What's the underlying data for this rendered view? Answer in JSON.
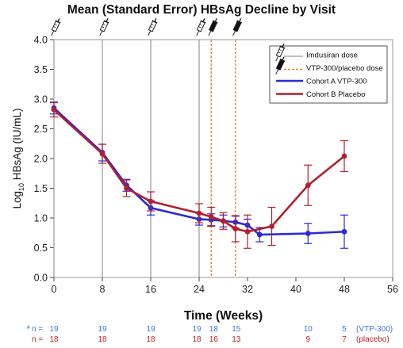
{
  "chart_data": {
    "type": "line",
    "title": "Mean (Standard Error) HBsAg Decline by Visit",
    "xlabel": "Time (Weeks)",
    "ylabel_main": "Log",
    "ylabel_sub": "10",
    "ylabel_rest": " HBsAg (IU/mL)",
    "xlim": [
      0,
      56
    ],
    "ylim": [
      0.0,
      4.0
    ],
    "x_ticks": [
      "0",
      "8",
      "16",
      "24",
      "32",
      "40",
      "48",
      "56"
    ],
    "y_ticks": [
      "0.0",
      "0.5",
      "1.0",
      "1.5",
      "2.0",
      "2.5",
      "3.0",
      "3.5",
      "4.0"
    ],
    "imdusiran_dose_weeks": [
      0,
      8,
      16,
      24
    ],
    "vtp_dose_weeks": [
      26,
      30
    ],
    "legend": {
      "position": "top-right",
      "items": [
        {
          "label": "Imdusiran dose",
          "kind": "imdusiran"
        },
        {
          "label": "VTP-300/placebo dose",
          "kind": "vtp"
        },
        {
          "label": "Cohort A VTP-300",
          "kind": "line",
          "color": "#2a2ad4"
        },
        {
          "label": "Cohort B Placebo",
          "kind": "line",
          "color": "#b0202e"
        }
      ]
    },
    "series": [
      {
        "name": "Cohort A VTP-300",
        "color": "#2a2ad4",
        "x": [
          0,
          8,
          12,
          16,
          24,
          26,
          28,
          30,
          32,
          34,
          42,
          48
        ],
        "y": [
          2.85,
          2.1,
          1.55,
          1.17,
          0.98,
          0.97,
          0.95,
          0.93,
          0.88,
          0.72,
          0.74,
          0.77
        ],
        "err": [
          0.1,
          0.14,
          0.1,
          0.12,
          0.1,
          0.1,
          0.1,
          0.1,
          0.1,
          0.12,
          0.17,
          0.28
        ]
      },
      {
        "name": "Cohort B Placebo",
        "color": "#b0202e",
        "x": [
          0,
          8,
          12,
          16,
          24,
          26,
          28,
          30,
          32,
          36,
          42,
          48
        ],
        "y": [
          2.82,
          2.08,
          1.5,
          1.28,
          1.08,
          1.02,
          0.95,
          0.82,
          0.77,
          0.86,
          1.55,
          2.04
        ],
        "err": [
          0.12,
          0.16,
          0.14,
          0.16,
          0.16,
          0.16,
          0.14,
          0.22,
          0.28,
          0.32,
          0.34,
          0.26
        ]
      }
    ],
    "n_rows": [
      {
        "prefix": "n =",
        "marker": "*",
        "color": "#3a7ad0",
        "weeks": [
          0,
          8,
          16,
          24,
          26,
          30,
          42,
          48
        ],
        "values": [
          "19",
          "19",
          "19",
          "19",
          "18",
          "15",
          "10",
          "5"
        ],
        "suffix": "(VTP-300)"
      },
      {
        "prefix": "n =",
        "marker": "",
        "color": "#c0202a",
        "weeks": [
          0,
          8,
          16,
          24,
          26,
          30,
          42,
          48
        ],
        "values": [
          "18",
          "18",
          "18",
          "18",
          "16",
          "13",
          "9",
          "7"
        ],
        "suffix": "(placebo)"
      }
    ]
  }
}
